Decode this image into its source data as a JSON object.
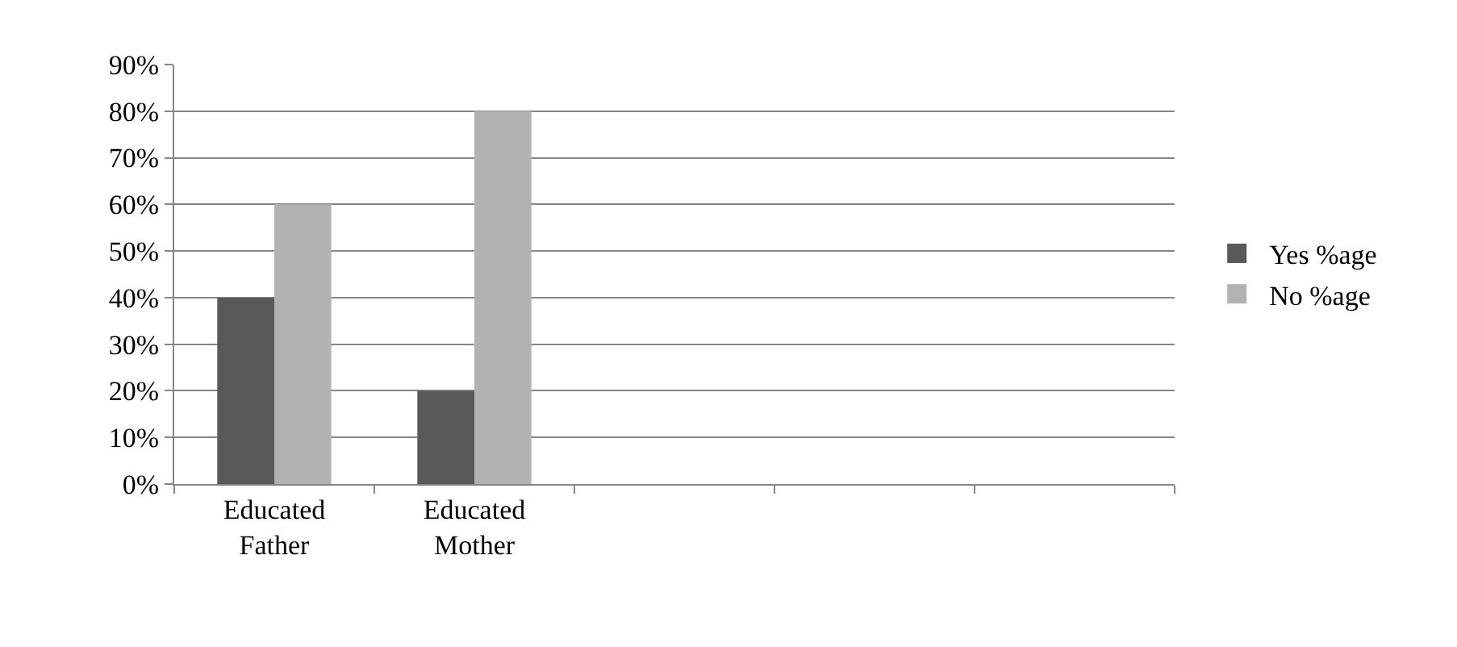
{
  "chart_data": {
    "type": "bar",
    "categories": [
      "Educated Father",
      "Educated Mother",
      null,
      null,
      null
    ],
    "series": [
      {
        "name": "Yes %age",
        "color": "#595959",
        "values": [
          40,
          20,
          null,
          null,
          null
        ]
      },
      {
        "name": "No %age",
        "color": "#b2b2b2",
        "values": [
          60,
          80,
          null,
          null,
          null
        ]
      }
    ],
    "ylim": [
      0,
      90
    ],
    "yticks": [
      {
        "value": 0,
        "label": "0%"
      },
      {
        "value": 10,
        "label": "10%"
      },
      {
        "value": 20,
        "label": "20%"
      },
      {
        "value": 30,
        "label": "30%"
      },
      {
        "value": 40,
        "label": "40%"
      },
      {
        "value": 50,
        "label": "50%"
      },
      {
        "value": 60,
        "label": "60%"
      },
      {
        "value": 70,
        "label": "70%"
      },
      {
        "value": 80,
        "label": "80%"
      },
      {
        "value": 90,
        "label": "90%"
      }
    ],
    "grid": "y",
    "legend": "right"
  }
}
